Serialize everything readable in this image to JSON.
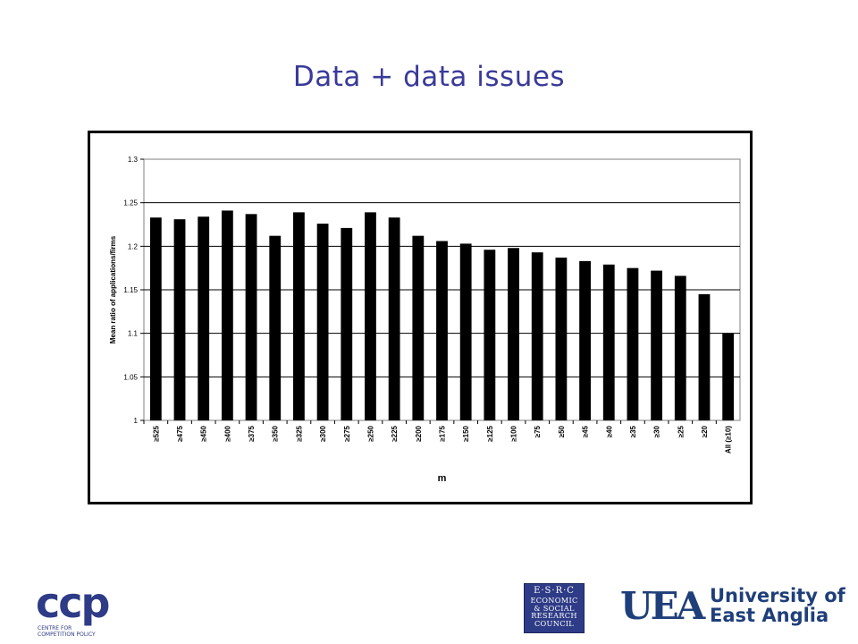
{
  "slide": {
    "title": "Data + data issues"
  },
  "chart_data": {
    "type": "bar",
    "title": "",
    "xlabel": "m",
    "ylabel": "Mean ratio of applications/firms",
    "ylim": [
      1,
      1.3
    ],
    "yticks": [
      "1",
      "1.05",
      "1.1",
      "1.15",
      "1.2",
      "1.25",
      "1.3"
    ],
    "grid": true,
    "legend": "none",
    "bar_color": "#000000",
    "categories": [
      "≥525",
      "≥475",
      "≥450",
      "≥400",
      "≥375",
      "≥350",
      "≥325",
      "≥300",
      "≥275",
      "≥250",
      "≥225",
      "≥200",
      "≥175",
      "≥150",
      "≥125",
      "≥100",
      "≥75",
      "≥50",
      "≥45",
      "≥40",
      "≥35",
      "≥30",
      "≥25",
      "≥20",
      "All (≥10)"
    ],
    "values": [
      1.233,
      1.231,
      1.234,
      1.241,
      1.237,
      1.212,
      1.239,
      1.226,
      1.221,
      1.239,
      1.233,
      1.212,
      1.206,
      1.203,
      1.196,
      1.198,
      1.193,
      1.187,
      1.183,
      1.179,
      1.175,
      1.172,
      1.166,
      1.145,
      1.1
    ]
  },
  "logos": {
    "ccp": {
      "mark": "ccp",
      "subtitle": "CENTRE FOR COMPETITION POLICY",
      "color": "#2e3b86"
    },
    "esrc": {
      "top": "E·S·R·C",
      "lines": [
        "ECONOMIC",
        "& SOCIAL",
        "RESEARCH",
        "COUNCIL"
      ]
    },
    "uea": {
      "mark": "UEA",
      "name_line1": "University of",
      "name_line2": "East Anglia"
    }
  }
}
